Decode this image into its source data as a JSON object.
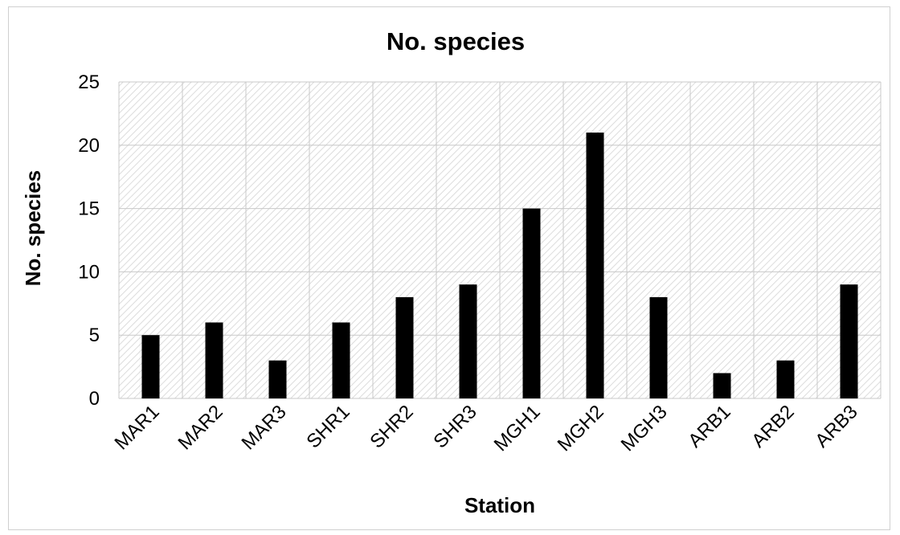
{
  "chart_data": {
    "type": "bar",
    "title": "No. species",
    "xlabel": "Station",
    "ylabel": "No. species",
    "categories": [
      "MAR1",
      "MAR2",
      "MAR3",
      "SHR1",
      "SHR2",
      "SHR3",
      "MGH1",
      "MGH2",
      "MGH3",
      "ARB1",
      "ARB2",
      "ARB3"
    ],
    "values": [
      5,
      6,
      3,
      6,
      8,
      9,
      15,
      21,
      8,
      2,
      3,
      9
    ],
    "ylim": [
      0,
      25
    ],
    "yticks": [
      "0",
      "5",
      "10",
      "15",
      "20",
      "25"
    ],
    "grid": true,
    "legend": "none",
    "bar_color": "#000000",
    "plot_background": "hatched-grey"
  }
}
